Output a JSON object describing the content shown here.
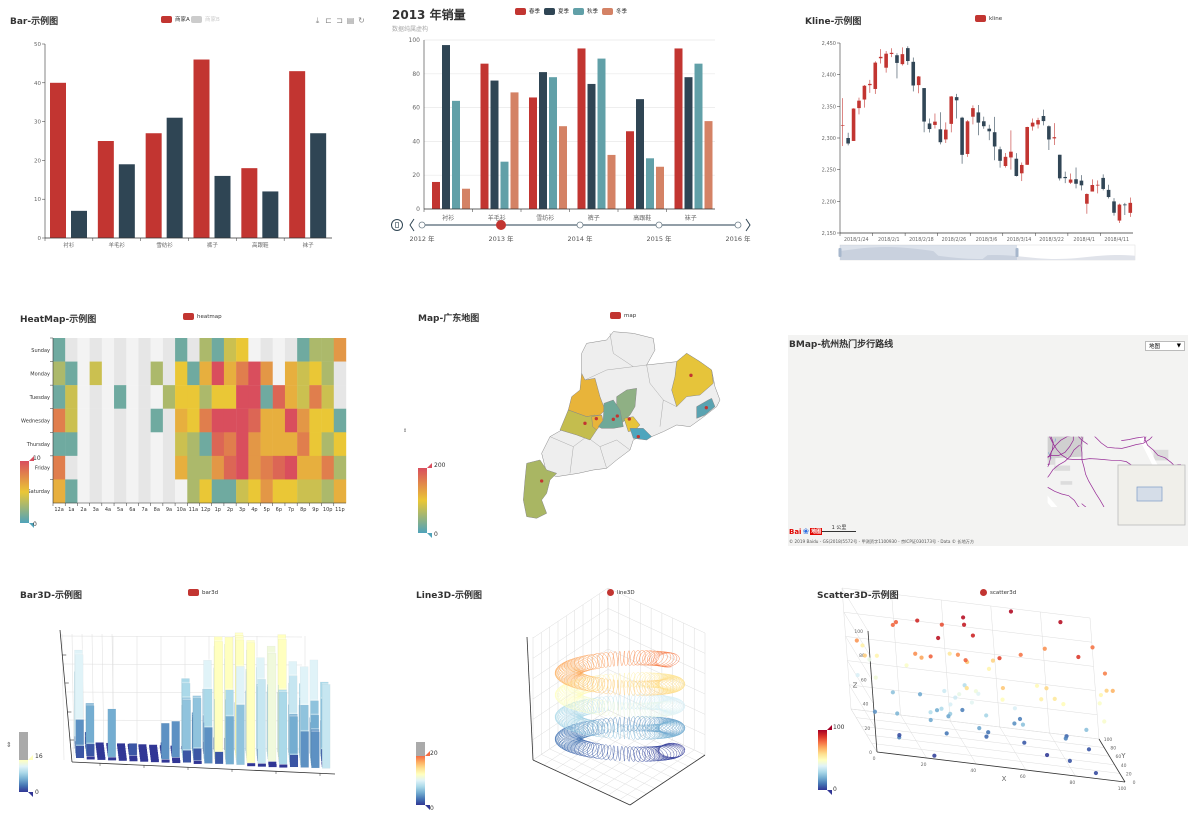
{
  "chart_data": [
    {
      "type": "bar",
      "title": "Bar-示例图",
      "categories": [
        "衬衫",
        "羊毛衫",
        "雪纺衫",
        "裤子",
        "高跟鞋",
        "袜子"
      ],
      "series": [
        {
          "name": "商家A",
          "values": [
            40,
            25,
            27,
            46,
            18,
            43
          ],
          "color": "#c23531",
          "legend_active": true
        },
        {
          "name": "商家B",
          "values": [
            7,
            19,
            31,
            16,
            12,
            27
          ],
          "color": "#2f4554",
          "legend_active": false
        }
      ],
      "ylim": [
        0,
        50
      ],
      "yticks": [
        0,
        10,
        20,
        30,
        40,
        50
      ],
      "toolbox": [
        "download-icon",
        "data-zoom-icon",
        "zoom-reset-icon",
        "data-view-icon",
        "restore-icon"
      ]
    },
    {
      "type": "bar",
      "title": "2013 年销量",
      "subtitle": "数据纯属虚构",
      "categories": [
        "衬衫",
        "羊毛衫",
        "雪纺衫",
        "裤子",
        "高跟鞋",
        "袜子"
      ],
      "series": [
        {
          "name": "春季",
          "values": [
            16,
            86,
            66,
            95,
            46,
            95
          ],
          "color": "#c23531"
        },
        {
          "name": "夏季",
          "values": [
            97,
            76,
            81,
            74,
            65,
            78
          ],
          "color": "#2f4554"
        },
        {
          "name": "秋季",
          "values": [
            64,
            28,
            78,
            89,
            30,
            86
          ],
          "color": "#61a0a8"
        },
        {
          "name": "冬季",
          "values": [
            12,
            69,
            49,
            32,
            25,
            52
          ],
          "color": "#d48265"
        }
      ],
      "ylim": [
        0,
        100
      ],
      "yticks": [
        0,
        20,
        40,
        60,
        80,
        100
      ],
      "timeline": {
        "labels": [
          "2012 年",
          "2013 年",
          "2014 年",
          "2015 年",
          "2016 年"
        ],
        "current_index": 1
      }
    },
    {
      "type": "candlestick",
      "title": "Kline-示例图",
      "legend": "kline",
      "up_color": "#c23531",
      "down_color": "#314656",
      "ylim": [
        2150,
        2450
      ],
      "yticks": [
        "2,150",
        "2,200",
        "2,250",
        "2,300",
        "2,350",
        "2,400",
        "2,450"
      ],
      "xtick_labels": [
        "2018/1/24",
        "2018/2/1",
        "2018/2/18",
        "2018/2/26",
        "2018/3/6",
        "2018/3/14",
        "2018/3/22",
        "2018/4/1",
        "2018/4/11"
      ],
      "ohlc": [
        [
          2320.26,
          2320.26,
          2287.3,
          2362.94
        ],
        [
          2300,
          2291.3,
          2288.26,
          2308.38
        ],
        [
          2295.35,
          2346.5,
          2295.35,
          2346.92
        ],
        [
          2347.22,
          2358.98,
          2337.35,
          2363.8
        ],
        [
          2360.75,
          2382.48,
          2347.89,
          2383.76
        ],
        [
          2383.43,
          2385.42,
          2371.23,
          2391.82
        ],
        [
          2377.41,
          2419.02,
          2369.57,
          2421.15
        ],
        [
          2425.92,
          2428.15,
          2417.58,
          2440.38
        ],
        [
          2411,
          2433.13,
          2403.3,
          2437.42
        ],
        [
          2432.68,
          2434.48,
          2427.7,
          2441.73
        ],
        [
          2430.69,
          2418.53,
          2394.22,
          2433.89
        ],
        [
          2416.62,
          2432.4,
          2414.4,
          2443.03
        ],
        [
          2441.91,
          2421.56,
          2415.43,
          2444.8
        ],
        [
          2420.26,
          2382.91,
          2373.53,
          2427.07
        ],
        [
          2383.49,
          2397.18,
          2370.61,
          2397.94
        ],
        [
          2378.82,
          2325.95,
          2309.17,
          2378.82
        ],
        [
          2322.94,
          2314.16,
          2308.76,
          2330.88
        ],
        [
          2320.62,
          2325.82,
          2315.01,
          2338.78
        ],
        [
          2313.74,
          2293.34,
          2289.89,
          2340.71
        ],
        [
          2297.77,
          2313.22,
          2292.03,
          2324.63
        ],
        [
          2322.32,
          2365.59,
          2308.92,
          2366.16
        ],
        [
          2364.54,
          2359.51,
          2330.86,
          2369.65
        ],
        [
          2332.08,
          2273.4,
          2259.25,
          2333.54
        ],
        [
          2274.81,
          2326.31,
          2270.1,
          2328.14
        ],
        [
          2333.61,
          2347.18,
          2321.6,
          2351.44
        ],
        [
          2340.44,
          2324.29,
          2304.27,
          2352.02
        ],
        [
          2326.42,
          2318.61,
          2314.59,
          2333.67
        ],
        [
          2314.68,
          2310.59,
          2296.58,
          2320.96
        ],
        [
          2309.16,
          2286.6,
          2264.83,
          2333.29
        ],
        [
          2282.17,
          2263.97,
          2253.25,
          2286.33
        ],
        [
          2255.77,
          2270.28,
          2253.31,
          2276.22
        ],
        [
          2269.31,
          2278.4,
          2250,
          2312.08
        ],
        [
          2267.29,
          2240.02,
          2239.21,
          2276.05
        ],
        [
          2244.26,
          2257.43,
          2232.02,
          2261.31
        ],
        [
          2257.74,
          2317.37,
          2257.42,
          2317.86
        ],
        [
          2318.21,
          2324.24,
          2311.6,
          2330.81
        ],
        [
          2321.4,
          2328.28,
          2314.97,
          2332
        ],
        [
          2334.74,
          2326.72,
          2319.91,
          2344.89
        ],
        [
          2318.58,
          2297.67,
          2281.12,
          2319.99
        ],
        [
          2299.38,
          2301.26,
          2289,
          2323.48
        ],
        [
          2273.55,
          2236.3,
          2232.91,
          2273.55
        ],
        [
          2238.49,
          2236.62,
          2228.81,
          2246.87
        ],
        [
          2229.46,
          2234.4,
          2227.31,
          2243.95
        ],
        [
          2234.9,
          2227.74,
          2220.44,
          2253.42
        ],
        [
          2232.69,
          2225.29,
          2217.25,
          2241.34
        ],
        [
          2196.24,
          2211.59,
          2180.4,
          2212.59
        ],
        [
          2215.47,
          2225.77,
          2215.47,
          2234.73
        ],
        [
          2224.93,
          2226.13,
          2212.56,
          2233.04
        ],
        [
          2236.98,
          2219.55,
          2217.26,
          2242.48
        ],
        [
          2218.09,
          2206.78,
          2204.44,
          2226.26
        ],
        [
          2199.91,
          2181.94,
          2177.39,
          2204.99
        ],
        [
          2169.63,
          2194.85,
          2165.78,
          2196.43
        ],
        [
          2195.03,
          2193.8,
          2178.47,
          2197.51
        ],
        [
          2181.82,
          2197.6,
          2175.44,
          2206.03
        ]
      ],
      "datazoom_percent": [
        0,
        60
      ]
    },
    {
      "type": "heatmap",
      "title": "HeatMap-示例图",
      "legend": "heatmap",
      "hours": [
        "12a",
        "1a",
        "2a",
        "3a",
        "4a",
        "5a",
        "6a",
        "7a",
        "8a",
        "9a",
        "10a",
        "11a",
        "12p",
        "1p",
        "2p",
        "3p",
        "4p",
        "5p",
        "6p",
        "7p",
        "8p",
        "9p",
        "10p",
        "11p"
      ],
      "days": [
        "Sunday",
        "Monday",
        "Tuesday",
        "Wednesday",
        "Thursday",
        "Friday",
        "Saturday"
      ],
      "values": [
        [
          1,
          null,
          null,
          null,
          null,
          null,
          null,
          null,
          null,
          null,
          1,
          null,
          3,
          1,
          4,
          5,
          null,
          null,
          null,
          null,
          1,
          3,
          3,
          7
        ],
        [
          3,
          1,
          null,
          4,
          null,
          null,
          null,
          null,
          3,
          null,
          5,
          1,
          6,
          10,
          6,
          8,
          10,
          7,
          null,
          6,
          4,
          5,
          3,
          null
        ],
        [
          1,
          4,
          null,
          null,
          null,
          1,
          null,
          null,
          null,
          3,
          5,
          5,
          3,
          5,
          5,
          10,
          10,
          1,
          9,
          6,
          4,
          8,
          4,
          null
        ],
        [
          8,
          4,
          null,
          null,
          null,
          null,
          null,
          null,
          1,
          null,
          6,
          5,
          8,
          10,
          10,
          10,
          9,
          6,
          6,
          10,
          7,
          5,
          5,
          1
        ],
        [
          1,
          1,
          null,
          null,
          null,
          null,
          null,
          null,
          null,
          null,
          4,
          3,
          1,
          9,
          8,
          10,
          7,
          6,
          6,
          6,
          8,
          5,
          3,
          5
        ],
        [
          8,
          null,
          null,
          null,
          null,
          null,
          null,
          null,
          null,
          null,
          6,
          3,
          3,
          7,
          9,
          10,
          7,
          8,
          9,
          10,
          6,
          6,
          8,
          3
        ],
        [
          6,
          1,
          null,
          null,
          null,
          null,
          null,
          null,
          null,
          null,
          null,
          3,
          5,
          1,
          1,
          4,
          5,
          7,
          5,
          5,
          4,
          4,
          3,
          6
        ]
      ],
      "visual_map": {
        "min": 0,
        "max": 10,
        "colors": [
          "#50a3ba",
          "#eac736",
          "#d94e5d"
        ]
      }
    },
    {
      "type": "map",
      "title": "Map-广东地图",
      "legend": "map",
      "visual_map": {
        "min": 0,
        "max": 200
      }
    },
    {
      "type": "bmap",
      "title": "BMap-杭州热门步行路线",
      "map_type_dropdown": "地图",
      "scale_label": "1 公里",
      "logo_text": "Bai",
      "logo_sub": "地图",
      "copyright": "© 2019 Baidu - GS(2018)5572号 - 甲测资字1100930 - 京ICP证030173号 - Data © 长地万方",
      "line_color": "#8e1a8e"
    },
    {
      "type": "bar3D",
      "title": "Bar3D-示例图",
      "legend": "bar3d",
      "visual_map": {
        "min": 0,
        "max": 20,
        "labels": [
          "16",
          "0"
        ]
      }
    },
    {
      "type": "line3D",
      "title": "Line3D-示例图",
      "legend": "line3D",
      "visual_map": {
        "min": 0,
        "max": 20,
        "labels": [
          "20",
          "0"
        ]
      }
    },
    {
      "type": "scatter3D",
      "title": "Scatter3D-示例图",
      "legend": "scatter3d",
      "axes": {
        "x": "X",
        "y": "Y",
        "z": "Z"
      },
      "ticks": [
        0,
        20,
        40,
        60,
        80,
        100
      ],
      "visual_map": {
        "min": 0,
        "max": 100,
        "labels": [
          "100",
          "0"
        ]
      }
    }
  ]
}
